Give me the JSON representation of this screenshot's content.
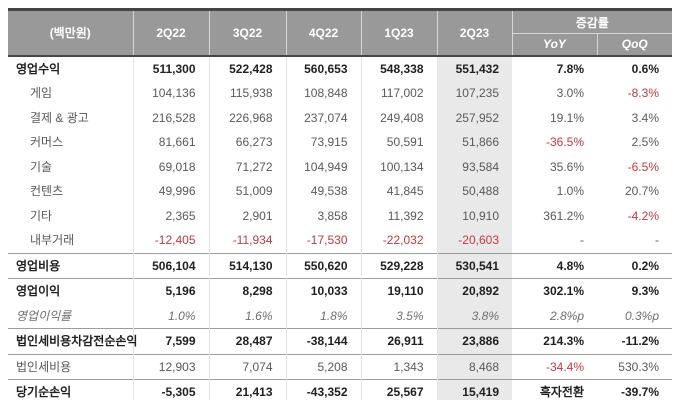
{
  "colors": {
    "header-bg": "#999999",
    "header-text": "#ffffff",
    "highlight-bg": "#e9e9e9",
    "negative-red": "#c4383d",
    "text-strong": "#1f1f1f",
    "text-body": "#595959",
    "divider": "#9c9c9c",
    "grid": "#e3e3e3",
    "frame": "#454545"
  },
  "chart_data": {
    "type": "table",
    "unit_label": "(백만원)",
    "columns": [
      "2Q22",
      "3Q22",
      "4Q22",
      "1Q23",
      "2Q23"
    ],
    "growth_header": "증감률",
    "subheaders": [
      "YoY",
      "QoQ"
    ],
    "highlight_column": "2Q23",
    "rows": [
      {
        "label": "영업수익",
        "type": "total",
        "divider": false,
        "values": [
          "511,300",
          "522,428",
          "560,653",
          "548,338",
          "551,432"
        ],
        "yoy": "7.8%",
        "qoq": "0.6%"
      },
      {
        "label": "게임",
        "type": "sub",
        "divider": false,
        "values": [
          "104,136",
          "115,938",
          "108,848",
          "117,002",
          "107,235"
        ],
        "yoy": "3.0%",
        "qoq": "-8.3%"
      },
      {
        "label": "결제 & 광고",
        "type": "sub",
        "divider": false,
        "values": [
          "216,528",
          "226,968",
          "237,074",
          "249,408",
          "257,952"
        ],
        "yoy": "19.1%",
        "qoq": "3.4%"
      },
      {
        "label": "커머스",
        "type": "sub",
        "divider": false,
        "values": [
          "81,661",
          "66,273",
          "73,915",
          "50,591",
          "51,866"
        ],
        "yoy": "-36.5%",
        "qoq": "2.5%"
      },
      {
        "label": "기술",
        "type": "sub",
        "divider": false,
        "values": [
          "69,018",
          "71,272",
          "104,949",
          "100,134",
          "93,584"
        ],
        "yoy": "35.6%",
        "qoq": "-6.5%"
      },
      {
        "label": "컨텐츠",
        "type": "sub",
        "divider": false,
        "values": [
          "49,996",
          "51,009",
          "49,538",
          "41,845",
          "50,488"
        ],
        "yoy": "1.0%",
        "qoq": "20.7%"
      },
      {
        "label": "기타",
        "type": "sub",
        "divider": false,
        "values": [
          "2,365",
          "2,901",
          "3,858",
          "11,392",
          "10,910"
        ],
        "yoy": "361.2%",
        "qoq": "-4.2%"
      },
      {
        "label": "내부거래",
        "type": "sub",
        "divider": false,
        "values": [
          "-12,405",
          "-11,934",
          "-17,530",
          "-22,032",
          "-20,603"
        ],
        "yoy": "-",
        "qoq": "-"
      },
      {
        "label": "영업비용",
        "type": "total",
        "divider": true,
        "values": [
          "506,104",
          "514,130",
          "550,620",
          "529,228",
          "530,541"
        ],
        "yoy": "4.8%",
        "qoq": "0.2%"
      },
      {
        "label": "영업이익",
        "type": "total",
        "divider": true,
        "values": [
          "5,196",
          "8,298",
          "10,033",
          "19,110",
          "20,892"
        ],
        "yoy": "302.1%",
        "qoq": "9.3%"
      },
      {
        "label": "영업이익률",
        "type": "italic",
        "divider": false,
        "values": [
          "1.0%",
          "1.6%",
          "1.8%",
          "3.5%",
          "3.8%"
        ],
        "yoy": "2.8%p",
        "qoq": "0.3%p"
      },
      {
        "label": "법인세비용차감전순손익",
        "type": "total",
        "divider": true,
        "values": [
          "7,599",
          "28,487",
          "-38,144",
          "26,911",
          "23,886"
        ],
        "yoy": "214.3%",
        "qoq": "-11.2%"
      },
      {
        "label": "법인세비용",
        "type": "plain",
        "divider": true,
        "values": [
          "12,903",
          "7,074",
          "5,208",
          "1,343",
          "8,468"
        ],
        "yoy": "-34.4%",
        "qoq": "530.3%"
      },
      {
        "label": "당기순손익",
        "type": "total",
        "divider": true,
        "values": [
          "-5,305",
          "21,413",
          "-43,352",
          "25,567",
          "15,419"
        ],
        "yoy": "흑자전환",
        "qoq": "-39.7%"
      }
    ]
  }
}
